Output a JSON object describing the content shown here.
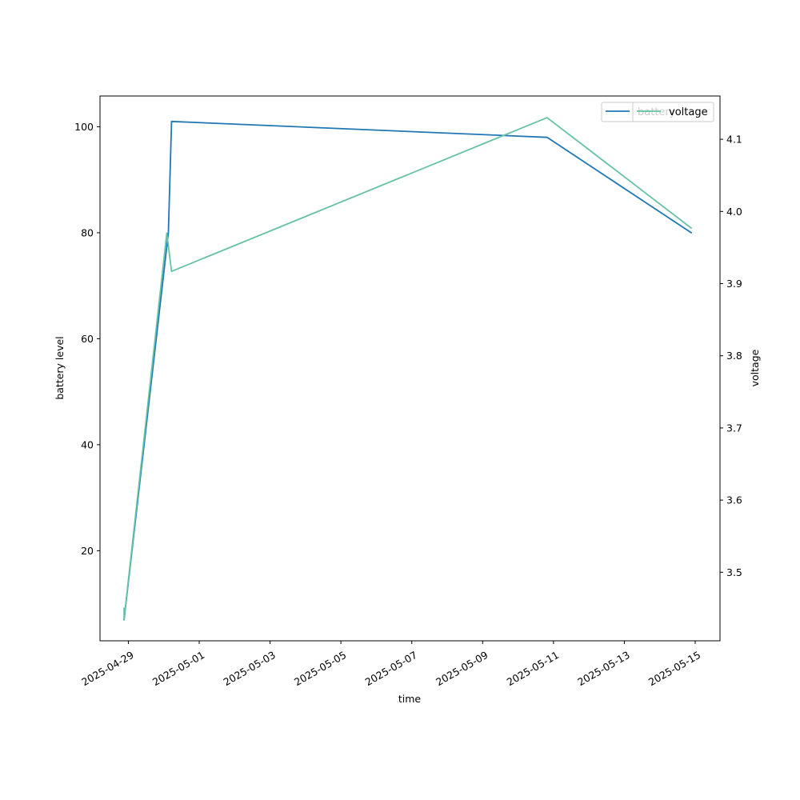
{
  "chart_data": {
    "type": "line",
    "xlabel": "time",
    "ylabel_left": "battery level",
    "ylabel_right": "voltage",
    "xlim": [
      "2025-04-28T04:48",
      "2025-05-15T16:48"
    ],
    "ylim_left": [
      3,
      105.8
    ],
    "ylim_right": [
      3.405,
      4.16
    ],
    "x_ticks": [
      "2025-04-29",
      "2025-05-01",
      "2025-05-03",
      "2025-05-05",
      "2025-05-07",
      "2025-05-09",
      "2025-05-11",
      "2025-05-13",
      "2025-05-15"
    ],
    "y_ticks_left": [
      20,
      40,
      60,
      80,
      100
    ],
    "y_ticks_right": [
      3.5,
      3.6,
      3.7,
      3.8,
      3.9,
      4.0,
      4.1
    ],
    "grid": false,
    "legend_position": "top-right",
    "series": [
      {
        "name": "battery",
        "axis": "left",
        "color": "#1f77b4",
        "points": [
          {
            "x": "2025-04-28T21:06",
            "y": 7
          },
          {
            "x": "2025-04-30T03:07",
            "y": 80
          },
          {
            "x": "2025-04-30T05:17",
            "y": 101
          },
          {
            "x": "2025-05-10T19:40",
            "y": 98
          },
          {
            "x": "2025-05-14T21:18",
            "y": 80
          }
        ]
      },
      {
        "name": "voltage",
        "axis": "right",
        "color": "#66c2a5",
        "points": [
          {
            "x": "2025-04-28T21:06",
            "y": 3.45
          },
          {
            "x": "2025-04-28T21:06",
            "y": 3.435
          },
          {
            "x": "2025-04-30T02:02",
            "y": 3.97
          },
          {
            "x": "2025-04-30T05:17",
            "y": 3.917
          },
          {
            "x": "2025-05-10T19:40",
            "y": 4.13
          },
          {
            "x": "2025-05-14T21:18",
            "y": 3.977
          }
        ]
      }
    ]
  }
}
